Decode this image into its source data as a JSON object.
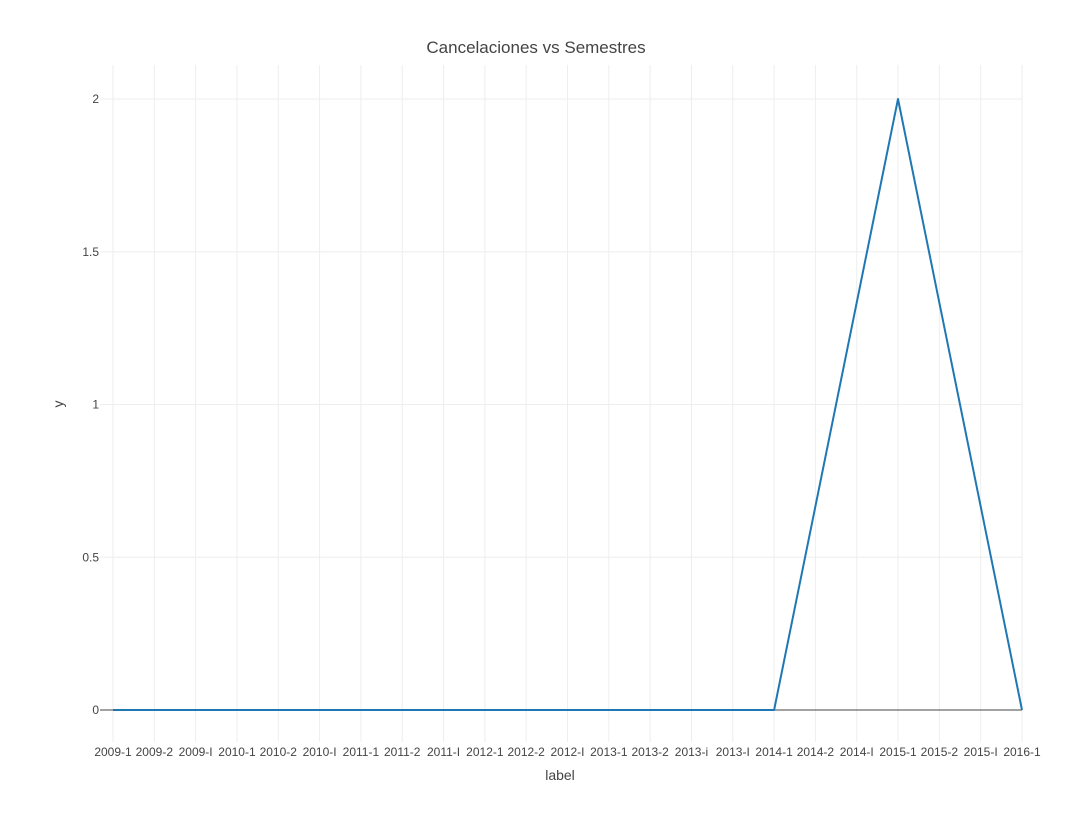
{
  "chart_data": {
    "type": "line",
    "title": "Cancelaciones vs Semestres",
    "xlabel": "label",
    "ylabel": "y",
    "ylim": [
      0,
      2
    ],
    "yticks": [
      "0",
      "0.5",
      "1",
      "1.5",
      "2"
    ],
    "grid": true,
    "categories": [
      "2009-1",
      "2009-2",
      "2009-I",
      "2010-1",
      "2010-2",
      "2010-I",
      "2011-1",
      "2011-2",
      "2011-I",
      "2012-1",
      "2012-2",
      "2012-I",
      "2013-1",
      "2013-2",
      "2013-i",
      "2013-I",
      "2014-1",
      "2014-2",
      "2014-I",
      "2015-1",
      "2015-2",
      "2015-I",
      "2016-1"
    ],
    "series": [
      {
        "values": [
          0,
          0,
          0,
          0,
          0,
          0,
          0,
          0,
          0,
          0,
          0,
          0,
          0,
          0,
          0,
          0,
          0,
          null,
          null,
          2,
          null,
          null,
          0
        ],
        "color": "#1f77b4"
      }
    ]
  }
}
